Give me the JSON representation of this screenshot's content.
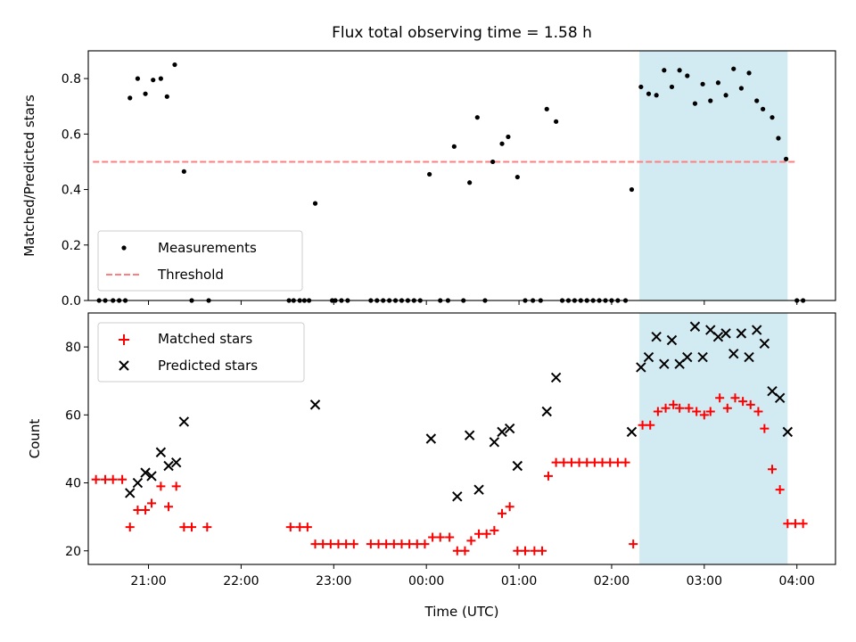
{
  "title": "Flux total observing time = 1.58 h",
  "colors": {
    "highlight": "#add8e6",
    "measurement": "#000000",
    "threshold": "#ff7f7f",
    "matched": "#ff0000",
    "predicted": "#000000"
  },
  "chart_data": [
    {
      "type": "scatter",
      "ylabel": "Matched/Predicted stars",
      "ylim": [
        0,
        0.9
      ],
      "yticks": [
        0.0,
        0.2,
        0.4,
        0.6,
        0.8
      ],
      "ytick_labels": [
        "0.0",
        "0.2",
        "0.4",
        "0.6",
        "0.8"
      ],
      "xticks": [
        "21:00",
        "22:00",
        "23:00",
        "00:00",
        "01:00",
        "02:00",
        "03:00",
        "04:00"
      ],
      "x_tick_labels_shown": false,
      "xlim": [
        "20:21",
        "04:25"
      ],
      "highlight_span": [
        "02:18",
        "03:54"
      ],
      "legend": {
        "position": "lower-left",
        "entries": [
          "Measurements",
          "Threshold"
        ]
      },
      "threshold": {
        "name": "Threshold",
        "value": 0.5,
        "x_start": "20:24",
        "x_end": "04:00"
      },
      "series": [
        {
          "name": "Measurements",
          "marker": "dot",
          "points": [
            [
              "20:28",
              0
            ],
            [
              "20:32",
              0
            ],
            [
              "20:37",
              0
            ],
            [
              "20:41",
              0
            ],
            [
              "20:45",
              0
            ],
            [
              "20:48",
              0.73
            ],
            [
              "20:53",
              0.8
            ],
            [
              "20:58",
              0.745
            ],
            [
              "21:03",
              0.795
            ],
            [
              "21:08",
              0.8
            ],
            [
              "21:12",
              0.735
            ],
            [
              "21:17",
              0.85
            ],
            [
              "21:23",
              0.465
            ],
            [
              "21:28",
              0
            ],
            [
              "21:39",
              0
            ],
            [
              "22:31",
              0
            ],
            [
              "22:34",
              0
            ],
            [
              "22:38",
              0
            ],
            [
              "22:41",
              0
            ],
            [
              "22:48",
              0.35
            ],
            [
              "22:44",
              0
            ],
            [
              "22:59",
              0
            ],
            [
              "23:01",
              0
            ],
            [
              "23:05",
              0
            ],
            [
              "23:09",
              0
            ],
            [
              "23:24",
              0
            ],
            [
              "23:28",
              0
            ],
            [
              "23:32",
              0
            ],
            [
              "23:36",
              0
            ],
            [
              "23:40",
              0
            ],
            [
              "23:44",
              0
            ],
            [
              "23:48",
              0
            ],
            [
              "23:52",
              0
            ],
            [
              "23:56",
              0
            ],
            [
              "00:02",
              0.455
            ],
            [
              "00:09",
              0
            ],
            [
              "00:14",
              0
            ],
            [
              "00:18",
              0.555
            ],
            [
              "00:24",
              0
            ],
            [
              "00:28",
              0.425
            ],
            [
              "00:33",
              0.66
            ],
            [
              "00:38",
              0
            ],
            [
              "00:43",
              0.5
            ],
            [
              "00:49",
              0.565
            ],
            [
              "00:53",
              0.59
            ],
            [
              "00:59",
              0.445
            ],
            [
              "01:04",
              0
            ],
            [
              "01:09",
              0
            ],
            [
              "01:14",
              0
            ],
            [
              "01:18",
              0.69
            ],
            [
              "01:24",
              0.645
            ],
            [
              "01:28",
              0
            ],
            [
              "01:32",
              0
            ],
            [
              "01:36",
              0
            ],
            [
              "01:40",
              0
            ],
            [
              "01:44",
              0
            ],
            [
              "01:48",
              0
            ],
            [
              "01:52",
              0
            ],
            [
              "01:56",
              0
            ],
            [
              "02:00",
              0
            ],
            [
              "02:04",
              0
            ],
            [
              "02:09",
              0
            ],
            [
              "02:13",
              0.4
            ],
            [
              "02:19",
              0.77
            ],
            [
              "02:24",
              0.745
            ],
            [
              "02:29",
              0.74
            ],
            [
              "02:34",
              0.83
            ],
            [
              "02:39",
              0.77
            ],
            [
              "02:44",
              0.83
            ],
            [
              "02:49",
              0.81
            ],
            [
              "02:54",
              0.71
            ],
            [
              "02:59",
              0.78
            ],
            [
              "03:04",
              0.72
            ],
            [
              "03:09",
              0.785
            ],
            [
              "03:14",
              0.74
            ],
            [
              "03:19",
              0.835
            ],
            [
              "03:24",
              0.765
            ],
            [
              "03:29",
              0.82
            ],
            [
              "03:34",
              0.72
            ],
            [
              "03:38",
              0.69
            ],
            [
              "03:44",
              0.66
            ],
            [
              "03:48",
              0.585
            ],
            [
              "03:53",
              0.51
            ],
            [
              "04:00",
              0
            ],
            [
              "04:04",
              0
            ]
          ]
        }
      ]
    },
    {
      "type": "scatter",
      "xlabel": "Time (UTC)",
      "ylabel": "Count",
      "ylim": [
        16,
        90
      ],
      "yticks": [
        20,
        40,
        60,
        80
      ],
      "ytick_labels": [
        "20",
        "40",
        "60",
        "80"
      ],
      "xticks": [
        "21:00",
        "22:00",
        "23:00",
        "00:00",
        "01:00",
        "02:00",
        "03:00",
        "04:00"
      ],
      "xtick_labels": [
        "21:00",
        "22:00",
        "23:00",
        "00:00",
        "01:00",
        "02:00",
        "03:00",
        "04:00"
      ],
      "xlim": [
        "20:21",
        "04:25"
      ],
      "highlight_span": [
        "02:18",
        "03:54"
      ],
      "legend": {
        "position": "upper-left",
        "entries": [
          "Matched stars",
          "Predicted stars"
        ]
      },
      "series": [
        {
          "name": "Matched stars",
          "marker": "plus",
          "points": [
            [
              "20:26",
              41
            ],
            [
              "20:32",
              41
            ],
            [
              "20:37",
              41
            ],
            [
              "20:43",
              41
            ],
            [
              "20:48",
              27
            ],
            [
              "20:53",
              32
            ],
            [
              "20:58",
              32
            ],
            [
              "21:02",
              34
            ],
            [
              "21:08",
              39
            ],
            [
              "21:13",
              33
            ],
            [
              "21:18",
              39
            ],
            [
              "21:23",
              27
            ],
            [
              "21:28",
              27
            ],
            [
              "21:38",
              27
            ],
            [
              "22:32",
              27
            ],
            [
              "22:38",
              27
            ],
            [
              "22:43",
              27
            ],
            [
              "22:48",
              22
            ],
            [
              "22:53",
              22
            ],
            [
              "22:58",
              22
            ],
            [
              "23:03",
              22
            ],
            [
              "23:08",
              22
            ],
            [
              "23:13",
              22
            ],
            [
              "23:24",
              22
            ],
            [
              "23:29",
              22
            ],
            [
              "23:34",
              22
            ],
            [
              "23:39",
              22
            ],
            [
              "23:44",
              22
            ],
            [
              "23:49",
              22
            ],
            [
              "23:54",
              22
            ],
            [
              "23:59",
              22
            ],
            [
              "00:04",
              24
            ],
            [
              "00:09",
              24
            ],
            [
              "00:15",
              24
            ],
            [
              "00:20",
              20
            ],
            [
              "00:25",
              20
            ],
            [
              "00:29",
              23
            ],
            [
              "00:34",
              25
            ],
            [
              "00:39",
              25
            ],
            [
              "00:44",
              26
            ],
            [
              "00:49",
              31
            ],
            [
              "00:54",
              33
            ],
            [
              "00:59",
              20
            ],
            [
              "01:04",
              20
            ],
            [
              "01:10",
              20
            ],
            [
              "01:15",
              20
            ],
            [
              "01:19",
              42
            ],
            [
              "01:24",
              46
            ],
            [
              "01:29",
              46
            ],
            [
              "01:34",
              46
            ],
            [
              "01:39",
              46
            ],
            [
              "01:44",
              46
            ],
            [
              "01:49",
              46
            ],
            [
              "01:54",
              46
            ],
            [
              "01:59",
              46
            ],
            [
              "02:04",
              46
            ],
            [
              "02:09",
              46
            ],
            [
              "02:14",
              22
            ],
            [
              "02:20",
              57
            ],
            [
              "02:25",
              57
            ],
            [
              "02:30",
              61
            ],
            [
              "02:35",
              62
            ],
            [
              "02:40",
              63
            ],
            [
              "02:44",
              62
            ],
            [
              "02:50",
              62
            ],
            [
              "02:55",
              61
            ],
            [
              "03:00",
              60
            ],
            [
              "03:04",
              61
            ],
            [
              "03:10",
              65
            ],
            [
              "03:15",
              62
            ],
            [
              "03:20",
              65
            ],
            [
              "03:25",
              64
            ],
            [
              "03:30",
              63
            ],
            [
              "03:35",
              61
            ],
            [
              "03:39",
              56
            ],
            [
              "03:44",
              44
            ],
            [
              "03:49",
              38
            ],
            [
              "03:54",
              28
            ],
            [
              "03:59",
              28
            ],
            [
              "04:04",
              28
            ]
          ]
        },
        {
          "name": "Predicted stars",
          "marker": "x",
          "points": [
            [
              "20:48",
              37
            ],
            [
              "20:53",
              40
            ],
            [
              "20:58",
              43
            ],
            [
              "21:02",
              42
            ],
            [
              "21:08",
              49
            ],
            [
              "21:13",
              45
            ],
            [
              "21:18",
              46
            ],
            [
              "21:23",
              58
            ],
            [
              "22:48",
              63
            ],
            [
              "00:03",
              53
            ],
            [
              "00:20",
              36
            ],
            [
              "00:28",
              54
            ],
            [
              "00:34",
              38
            ],
            [
              "00:44",
              52
            ],
            [
              "00:49",
              55
            ],
            [
              "00:54",
              56
            ],
            [
              "00:59",
              45
            ],
            [
              "01:18",
              61
            ],
            [
              "01:24",
              71
            ],
            [
              "02:13",
              55
            ],
            [
              "02:19",
              74
            ],
            [
              "02:24",
              77
            ],
            [
              "02:29",
              83
            ],
            [
              "02:34",
              75
            ],
            [
              "02:39",
              82
            ],
            [
              "02:44",
              75
            ],
            [
              "02:49",
              77
            ],
            [
              "02:54",
              86
            ],
            [
              "02:59",
              77
            ],
            [
              "03:04",
              85
            ],
            [
              "03:09",
              83
            ],
            [
              "03:14",
              84
            ],
            [
              "03:19",
              78
            ],
            [
              "03:24",
              84
            ],
            [
              "03:29",
              77
            ],
            [
              "03:34",
              85
            ],
            [
              "03:39",
              81
            ],
            [
              "03:44",
              67
            ],
            [
              "03:49",
              65
            ],
            [
              "03:54",
              55
            ]
          ]
        }
      ]
    }
  ]
}
